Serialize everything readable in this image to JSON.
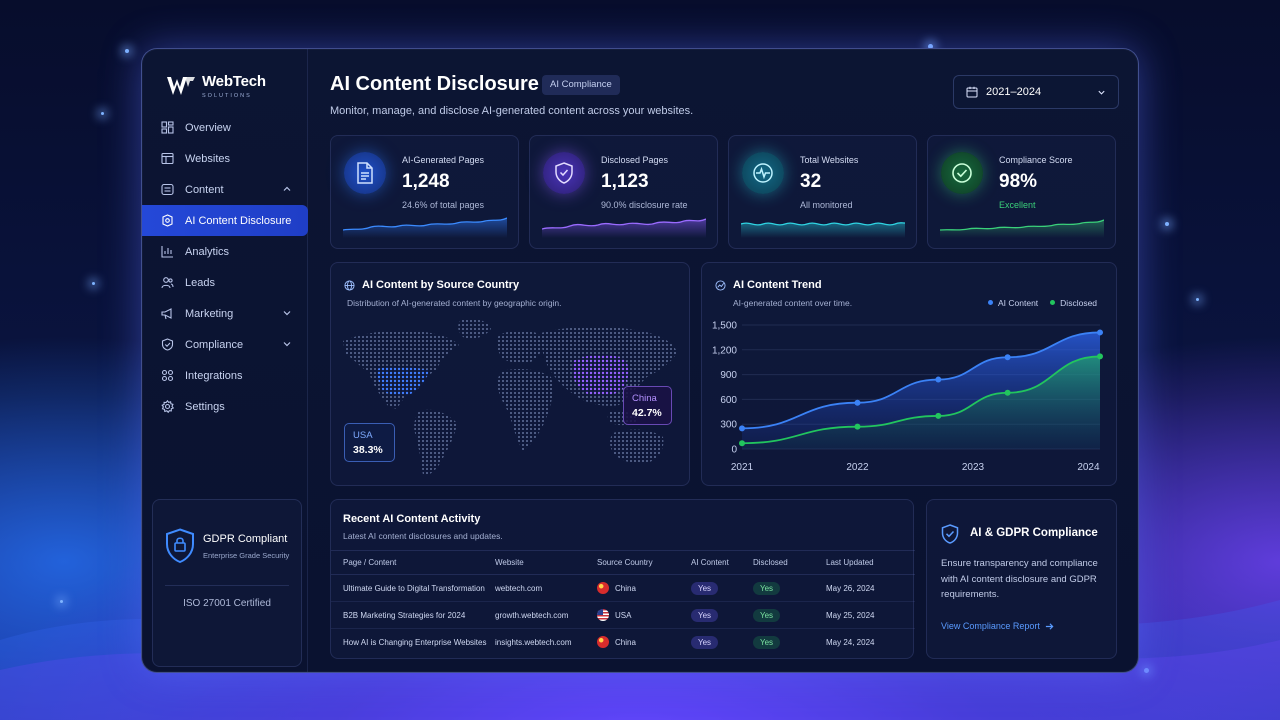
{
  "app": {
    "logo_name": "WebTech",
    "logo_sub": "SOLUTIONS"
  },
  "sidebar": {
    "items": [
      {
        "label": "Overview",
        "icon": "overview-icon"
      },
      {
        "label": "Websites",
        "icon": "websites-icon"
      },
      {
        "label": "Content",
        "icon": "content-icon",
        "expanded": true
      },
      {
        "label": "AI Content Disclosure",
        "icon": "ai-disclosure-icon",
        "active": true
      },
      {
        "label": "Analytics",
        "icon": "analytics-icon"
      },
      {
        "label": "Leads",
        "icon": "leads-icon"
      },
      {
        "label": "Marketing",
        "icon": "marketing-icon",
        "collapsed": true
      },
      {
        "label": "Compliance",
        "icon": "compliance-icon",
        "collapsed": true
      },
      {
        "label": "Integrations",
        "icon": "integrations-icon"
      },
      {
        "label": "Settings",
        "icon": "settings-icon"
      }
    ],
    "gdpr": {
      "title": "GDPR Compliant",
      "subtitle": "Enterprise Grade Security",
      "iso": "ISO 27001 Certified"
    }
  },
  "header": {
    "title": "AI Content Disclosure",
    "badge": "AI Compliance",
    "subtitle": "Monitor, manage, and disclose AI-generated content across your websites.",
    "date_range": "2021–2024"
  },
  "stats": [
    {
      "label": "AI-Generated Pages",
      "value": "1,248",
      "sub": "24.6% of total pages",
      "icon": "document-icon",
      "color": "#2f7cff"
    },
    {
      "label": "Disclosed Pages",
      "value": "1,123",
      "sub": "90.0% disclosure rate",
      "icon": "shield-check-icon",
      "color": "#8b5cff"
    },
    {
      "label": "Total Websites",
      "value": "32",
      "sub": "All monitored",
      "icon": "pulse-icon",
      "color": "#27c7d8"
    },
    {
      "label": "Compliance Score",
      "value": "98%",
      "sub": "Excellent",
      "icon": "check-circle-icon",
      "color": "#3ad07a"
    }
  ],
  "map_panel": {
    "title": "AI Content by Source Country",
    "subtitle": "Distribution of AI-generated content by geographic origin.",
    "labels": [
      {
        "country": "USA",
        "value": "38.3%"
      },
      {
        "country": "China",
        "value": "42.7%"
      }
    ]
  },
  "trend_panel": {
    "title": "AI Content Trend",
    "subtitle": "AI-generated content over time."
  },
  "chart_data": {
    "type": "area",
    "title": "AI Content Trend",
    "x": [
      2021,
      2021.5,
      2022.2,
      2022.7,
      2023.3,
      2024.1
    ],
    "x_ticks": [
      "2021",
      "2022",
      "2023",
      "2024"
    ],
    "y_ticks": [
      "0",
      "300",
      "600",
      "900",
      "1,200",
      "1,500"
    ],
    "ylim": [
      0,
      1500
    ],
    "xlim": [
      2021,
      2024.1
    ],
    "series": [
      {
        "name": "AI Content",
        "color": "#3b82f6",
        "values": [
          250,
          560,
          840,
          1110,
          1410
        ],
        "x": [
          2021,
          2022,
          2022.7,
          2023.3,
          2024.1
        ]
      },
      {
        "name": "Disclosed",
        "color": "#22c55e",
        "values": [
          70,
          270,
          400,
          680,
          1120
        ],
        "x": [
          2021,
          2022,
          2022.7,
          2023.3,
          2024.1
        ]
      }
    ],
    "legend": "top-right",
    "grid": true
  },
  "activity": {
    "title": "Recent AI Content Activity",
    "subtitle": "Latest AI content disclosures and updates.",
    "columns": [
      "Page / Content",
      "Website",
      "Source Country",
      "AI Content",
      "Disclosed",
      "Last Updated"
    ],
    "rows": [
      {
        "page": "Ultimate Guide to Digital Transformation",
        "website": "webtech.com",
        "country": "China",
        "flag": "cn",
        "ai": "Yes",
        "disclosed": "Yes",
        "updated": "May 26, 2024"
      },
      {
        "page": "B2B Marketing Strategies for 2024",
        "website": "growth.webtech.com",
        "country": "USA",
        "flag": "us",
        "ai": "Yes",
        "disclosed": "Yes",
        "updated": "May 25, 2024"
      },
      {
        "page": "How AI is Changing Enterprise Websites",
        "website": "insights.webtech.com",
        "country": "China",
        "flag": "cn",
        "ai": "Yes",
        "disclosed": "Yes",
        "updated": "May 24, 2024"
      }
    ]
  },
  "compliance_card": {
    "title": "AI & GDPR Compliance",
    "body": "Ensure transparency and compliance with AI content disclosure and GDPR requirements.",
    "link": "View Compliance Report"
  }
}
